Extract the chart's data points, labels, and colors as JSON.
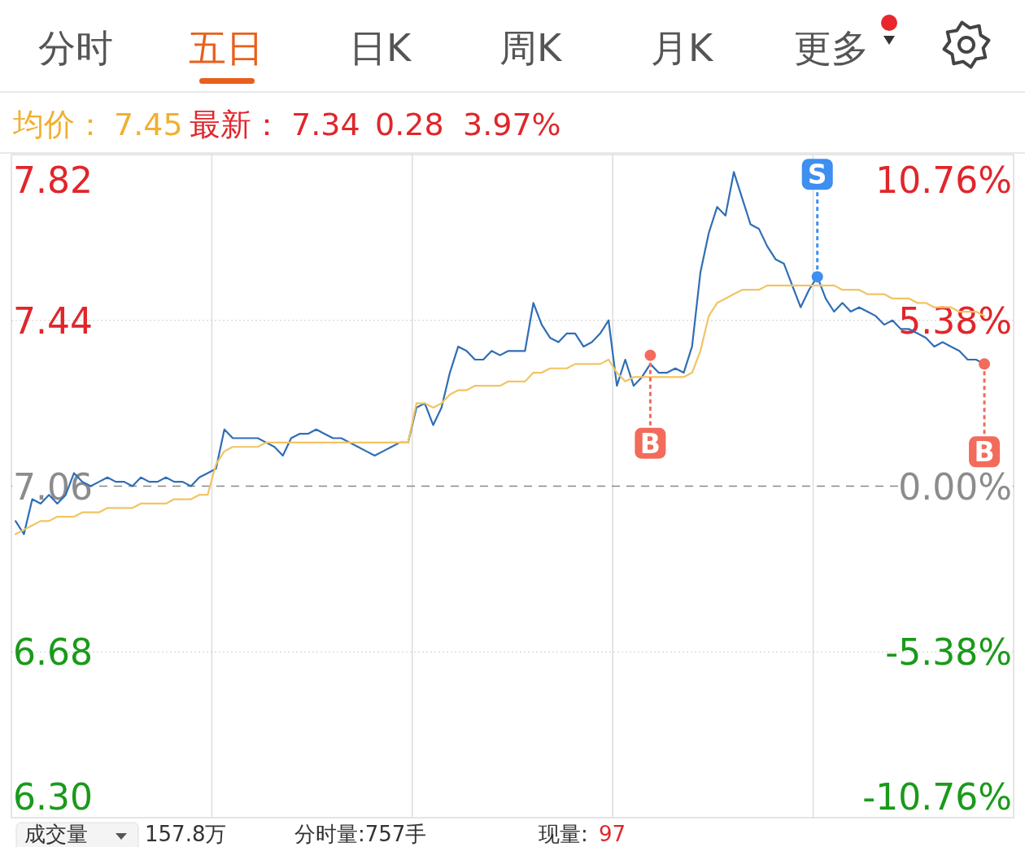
{
  "chart_data": {
    "type": "line",
    "annotations": [
      "分时",
      "五日",
      "日K",
      "周K",
      "月K",
      "更多",
      "均价：",
      "7.45",
      "最新：",
      "7.34",
      "0.28",
      "3.97%",
      "成交量",
      "157.8万",
      "分时量:757手",
      "现量:",
      "97"
    ],
    "categories": [
      null,
      null,
      null,
      null,
      null,
      null,
      null,
      null,
      null,
      null,
      null,
      null,
      null,
      null,
      null,
      null,
      null,
      null,
      null,
      null,
      null,
      null,
      null,
      null,
      null,
      null,
      null,
      null,
      null,
      null,
      null,
      null,
      null,
      null,
      null,
      null,
      null,
      null,
      null,
      null,
      null,
      null,
      null,
      null,
      null,
      null,
      null,
      null,
      null,
      null,
      null,
      null,
      null,
      null,
      null,
      null,
      null,
      null,
      null,
      null,
      null,
      null,
      null,
      null,
      null,
      null,
      null,
      null,
      null,
      null,
      null,
      null,
      null,
      null,
      null,
      null,
      null,
      null,
      null,
      null,
      null,
      null,
      null,
      null,
      null,
      null,
      null,
      null,
      null,
      null,
      null,
      null,
      null,
      null,
      null,
      null,
      null,
      null,
      null,
      null,
      null,
      null,
      null,
      null,
      null,
      null,
      null,
      null,
      null,
      null,
      null,
      null,
      null,
      null,
      null,
      null,
      null,
      null,
      null,
      null
    ],
    "series": [
      {
        "color": "#2f6eb5",
        "values": [
          6.98,
          6.95,
          7.03,
          7.02,
          7.04,
          7.02,
          7.04,
          7.09,
          7.07,
          7.06,
          7.07,
          7.08,
          7.07,
          7.07,
          7.06,
          7.08,
          7.07,
          7.07,
          7.08,
          7.07,
          7.07,
          7.06,
          7.08,
          7.09,
          7.1,
          7.19,
          7.17,
          7.17,
          7.17,
          7.17,
          7.16,
          7.15,
          7.13,
          7.17,
          7.18,
          7.18,
          7.19,
          7.18,
          7.17,
          7.17,
          7.16,
          7.15,
          7.14,
          7.13,
          7.14,
          7.15,
          7.16,
          7.16,
          7.24,
          7.25,
          7.2,
          7.24,
          7.32,
          7.38,
          7.37,
          7.35,
          7.35,
          7.37,
          7.36,
          7.37,
          7.37,
          7.37,
          7.48,
          7.43,
          7.4,
          7.39,
          7.41,
          7.41,
          7.38,
          7.39,
          7.41,
          7.44,
          7.29,
          7.35,
          7.29,
          7.31,
          7.34,
          7.32,
          7.32,
          7.33,
          7.32,
          7.38,
          7.55,
          7.64,
          7.7,
          7.68,
          7.78,
          7.72,
          7.66,
          7.65,
          7.61,
          7.58,
          7.57,
          7.52,
          7.47,
          7.51,
          7.54,
          7.49,
          7.46,
          7.48,
          7.46,
          7.47,
          7.46,
          7.45,
          7.43,
          7.44,
          7.42,
          7.42,
          7.41,
          7.4,
          7.38,
          7.39,
          7.38,
          7.37,
          7.35,
          7.35,
          7.34,
          null,
          null,
          null
        ]
      },
      {
        "color": "#f2c462",
        "values": [
          6.95,
          6.96,
          6.97,
          6.98,
          6.98,
          6.99,
          6.99,
          6.99,
          7.0,
          7.0,
          7.0,
          7.01,
          7.01,
          7.01,
          7.01,
          7.02,
          7.02,
          7.02,
          7.02,
          7.03,
          7.03,
          7.03,
          7.04,
          7.04,
          7.11,
          7.14,
          7.15,
          7.15,
          7.15,
          7.15,
          7.16,
          7.16,
          7.16,
          7.16,
          7.16,
          7.16,
          7.16,
          7.16,
          7.16,
          7.16,
          7.16,
          7.16,
          7.16,
          7.16,
          7.16,
          7.16,
          7.16,
          7.16,
          7.25,
          7.25,
          7.24,
          7.25,
          7.27,
          7.28,
          7.28,
          7.29,
          7.29,
          7.29,
          7.29,
          7.3,
          7.3,
          7.3,
          7.32,
          7.32,
          7.33,
          7.33,
          7.33,
          7.34,
          7.34,
          7.34,
          7.34,
          7.35,
          7.32,
          7.3,
          7.31,
          7.31,
          7.31,
          7.31,
          7.31,
          7.31,
          7.31,
          7.32,
          7.37,
          7.45,
          7.48,
          7.49,
          7.5,
          7.51,
          7.51,
          7.51,
          7.52,
          7.52,
          7.52,
          7.52,
          7.52,
          7.52,
          7.52,
          7.52,
          7.52,
          7.51,
          7.51,
          7.51,
          7.5,
          7.5,
          7.5,
          7.49,
          7.49,
          7.49,
          7.48,
          7.48,
          7.47,
          7.47,
          7.47,
          7.46,
          7.46,
          7.46,
          7.45,
          null,
          null,
          null
        ]
      },
      {
        "name": "B",
        "type": "scatter",
        "color": "#f26b5b",
        "values": [
          null,
          null,
          null,
          null,
          null,
          null,
          null,
          null,
          null,
          null,
          null,
          null,
          null,
          null,
          null,
          null,
          null,
          null,
          null,
          null,
          null,
          null,
          null,
          null,
          null,
          null,
          null,
          null,
          null,
          null,
          null,
          null,
          null,
          null,
          null,
          null,
          null,
          null,
          null,
          null,
          null,
          null,
          null,
          null,
          null,
          null,
          null,
          null,
          null,
          null,
          null,
          null,
          null,
          null,
          null,
          null,
          null,
          null,
          null,
          null,
          null,
          null,
          null,
          null,
          null,
          null,
          null,
          null,
          null,
          null,
          null,
          null,
          null,
          null,
          null,
          null,
          7.36,
          null,
          null,
          null,
          null,
          null,
          null,
          null,
          null,
          null,
          null,
          null,
          null,
          null,
          null,
          null,
          null,
          null,
          null,
          null,
          null,
          null,
          null,
          null,
          null,
          null,
          null,
          null,
          null,
          null,
          null,
          null,
          null,
          null,
          null,
          null,
          null,
          null,
          null,
          null,
          7.34,
          null,
          null,
          null
        ]
      },
      {
        "name": "S",
        "type": "scatter",
        "color": "#3d8ff0",
        "values": [
          null,
          null,
          null,
          null,
          null,
          null,
          null,
          null,
          null,
          null,
          null,
          null,
          null,
          null,
          null,
          null,
          null,
          null,
          null,
          null,
          null,
          null,
          null,
          null,
          null,
          null,
          null,
          null,
          null,
          null,
          null,
          null,
          null,
          null,
          null,
          null,
          null,
          null,
          null,
          null,
          null,
          null,
          null,
          null,
          null,
          null,
          null,
          null,
          null,
          null,
          null,
          null,
          null,
          null,
          null,
          null,
          null,
          null,
          null,
          null,
          null,
          null,
          null,
          null,
          null,
          null,
          null,
          null,
          null,
          null,
          null,
          null,
          null,
          null,
          null,
          null,
          null,
          null,
          null,
          null,
          null,
          null,
          null,
          null,
          null,
          null,
          null,
          null,
          null,
          null,
          null,
          null,
          null,
          null,
          null,
          null,
          7.54,
          null,
          null,
          null,
          null,
          null,
          null,
          null,
          null,
          null,
          null,
          null,
          null,
          null,
          null,
          null,
          null,
          null,
          null,
          null,
          null,
          null,
          null,
          null
        ]
      }
    ],
    "ylim": [
      6.3,
      7.82
    ],
    "yticks": [
      7.82,
      7.44,
      7.06,
      6.68,
      {
        "value": 6.3,
        "label": "6.30"
      }
    ],
    "y2lim": [
      -10.76,
      10.76
    ],
    "y2ticks": [
      {
        "value": 10.76,
        "label": "10.76%"
      },
      {
        "value": 5.38,
        "label": "5.38%"
      },
      {
        "value": 0,
        "label": "0.00%"
      },
      {
        "value": -5.38,
        "label": "-5.38%"
      },
      {
        "value": -10.76,
        "label": "-10.76%"
      }
    ],
    "ref_lines": [
      {
        "axis": "y",
        "value": 7.06,
        "color": "#888888",
        "line_style": "dashed"
      }
    ],
    "grid": true
  }
}
